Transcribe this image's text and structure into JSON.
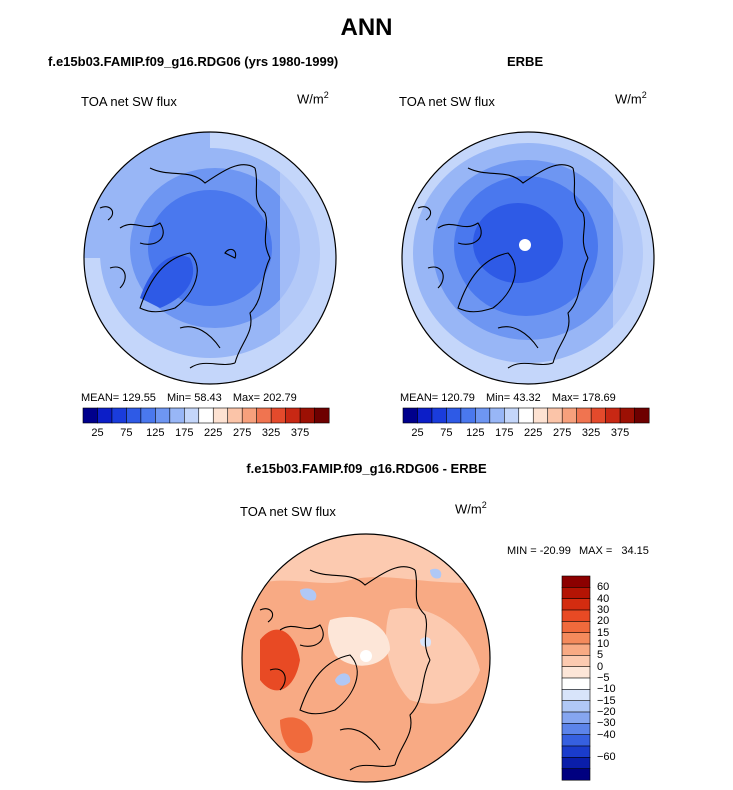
{
  "main_title": "ANN",
  "panels": [
    {
      "title": "f.e15b03.FAMIP.f09_g16.RDG06 (yrs 1980-1999)",
      "variable": "TOA net SW flux",
      "units": "W/m",
      "units_exp": "2",
      "mean_label": "MEAN=",
      "mean": "129.55",
      "min_label": "Min=",
      "min": "58.43",
      "max_label": "Max=",
      "max": "202.79"
    },
    {
      "title": "ERBE",
      "variable": "TOA net SW flux",
      "units": "W/m",
      "units_exp": "2",
      "mean_label": "MEAN=",
      "mean": "120.79",
      "min_label": "Min=",
      "min": "43.32",
      "max_label": "Max=",
      "max": "178.69"
    }
  ],
  "abs_colorbar": {
    "colors": [
      "#00008c",
      "#0c1ec8",
      "#1a3cdc",
      "#2e5ae6",
      "#4a78ee",
      "#6e96f2",
      "#98b6f6",
      "#c4d6fa",
      "#ffffff",
      "#fde2d2",
      "#fbc4a8",
      "#f7a07c",
      "#f07450",
      "#e44a2c",
      "#c82814",
      "#9c1004",
      "#6e0000"
    ],
    "tick_labels": [
      "25",
      "75",
      "125",
      "175",
      "225",
      "275",
      "325",
      "375"
    ]
  },
  "diff_panel": {
    "title": "f.e15b03.FAMIP.f09_g16.RDG06 - ERBE",
    "variable": "TOA net SW flux",
    "units": "W/m",
    "units_exp": "2",
    "min_label": "MIN =",
    "min": "-20.99",
    "max_label": "MAX =",
    "max": "34.15"
  },
  "diff_colorbar": {
    "colors_top_to_bottom": [
      "#8c0000",
      "#b41404",
      "#d42c10",
      "#e84a24",
      "#f06a3c",
      "#f48a5c",
      "#f8aa84",
      "#fccab0",
      "#fde6d8",
      "#ffffff",
      "#d8e4fa",
      "#b0c8f6",
      "#86a6f0",
      "#5c84ea",
      "#3660e0",
      "#1a3ccc",
      "#0a1eaa",
      "#000080"
    ],
    "labels": [
      "60",
      "40",
      "30",
      "20",
      "15",
      "10",
      "5",
      "0",
      "−5",
      "−10",
      "−15",
      "−20",
      "−30",
      "−40",
      "−60"
    ]
  }
}
